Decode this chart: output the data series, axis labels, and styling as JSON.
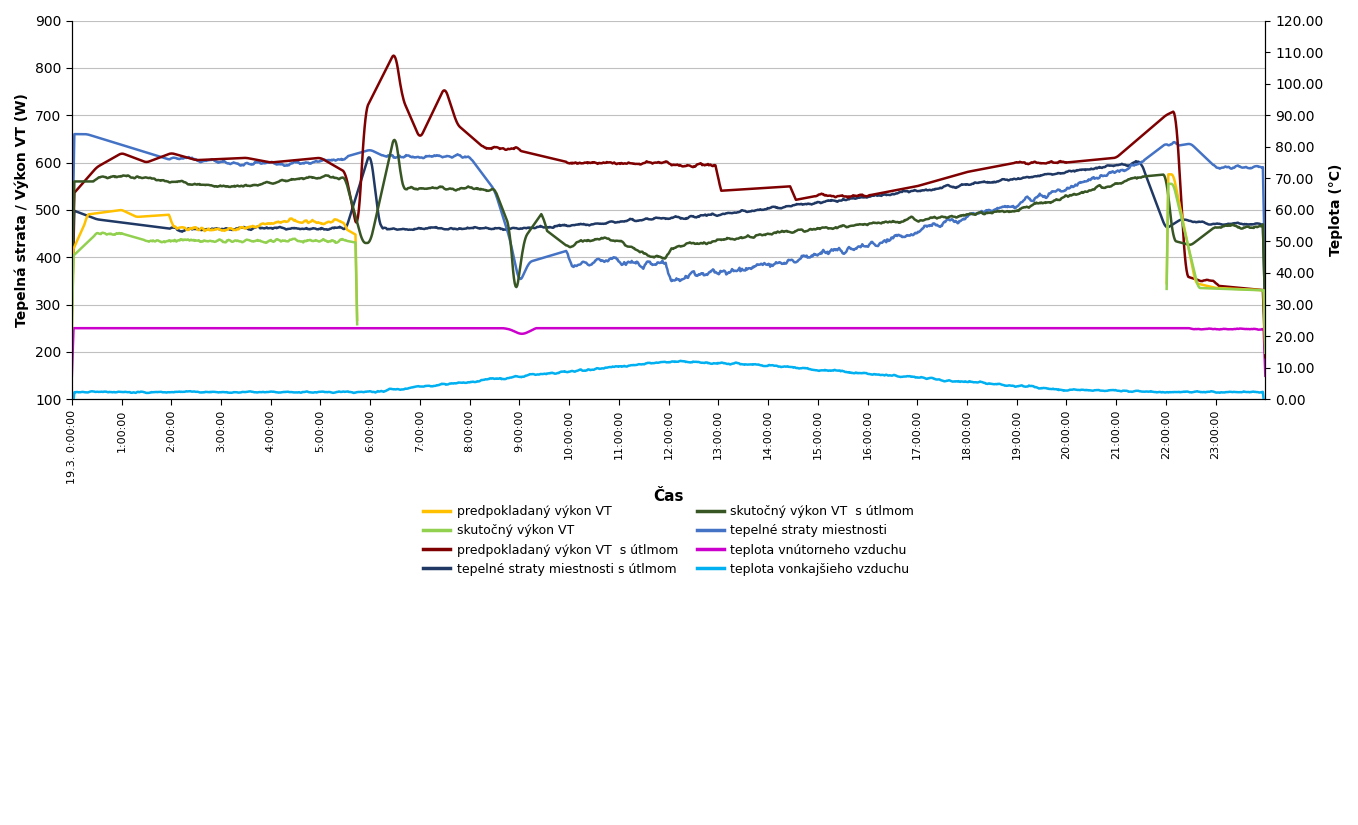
{
  "title": "",
  "xlabel": "Čas",
  "ylabel_left": "Tepelná strata / Výkon VT (W)",
  "ylabel_right": "Teplota (°C)",
  "ylim_left": [
    100,
    900
  ],
  "ylim_right": [
    0.0,
    120.0
  ],
  "yticks_left": [
    100,
    200,
    300,
    400,
    500,
    600,
    700,
    800,
    900
  ],
  "yticks_right": [
    0.0,
    10.0,
    20.0,
    30.0,
    40.0,
    50.0,
    60.0,
    70.0,
    80.0,
    90.0,
    100.0,
    110.0,
    120.0
  ],
  "xtick_labels": [
    "19.3. 0:00:00",
    "1:00:00",
    "2:00:00",
    "3:00:00",
    "4:00:00",
    "5:00:00",
    "6:00:00",
    "7:00:00",
    "8:00:00",
    "9:00:00",
    "10:00:00",
    "11:00:00",
    "12:00:00",
    "13:00:00",
    "14:00:00",
    "15:00:00",
    "16:00:00",
    "17:00:00",
    "18:00:00",
    "19:00:00",
    "20:00:00",
    "21:00:00",
    "22:00:00",
    "23:00:00"
  ],
  "colors": {
    "predpokladany_vykon_VT": "#FFC000",
    "skutocny_vykon_VT": "#92D050",
    "predpokladany_vykon_VT_utlmom": "#7F0000",
    "tepelne_straty_miestnosti_utlmom": "#1F3864",
    "skutocny_vykon_VT_utlmom": "#375623",
    "tepelne_straty_miestnosti": "#4472C4",
    "teplota_vnutorneho_vzduchu": "#CC00CC",
    "teplota_vonkajsieho_vzduchu": "#00B0F0"
  },
  "legend_entries_col1": [
    "predpokladaný výkon VT",
    "predpokladaný výkon VT  s útlmom",
    "skutočný výkon VT  s útlmom",
    "teplota vnútorneho vzduchu"
  ],
  "legend_entries_col2": [
    "skutočný výkon VT",
    "tepelné straty miestnosti s útlmom",
    "tepelné straty miestnosti",
    "teplota vonkajšieho vzduchu"
  ],
  "legend_colors_col1": [
    "#FFC000",
    "#7F0000",
    "#375623",
    "#CC00CC"
  ],
  "legend_colors_col2": [
    "#92D050",
    "#1F3864",
    "#4472C4",
    "#00B0F0"
  ]
}
